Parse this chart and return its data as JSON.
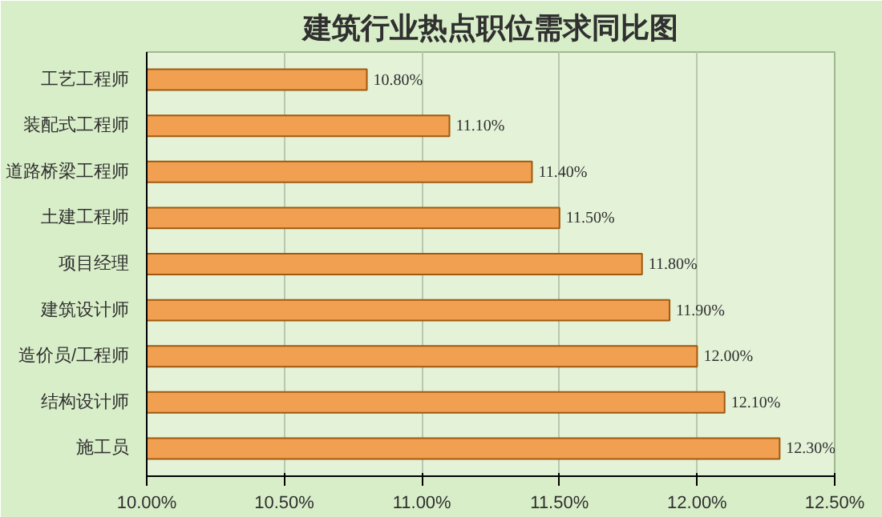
{
  "chart_data": {
    "type": "bar",
    "orientation": "horizontal",
    "title": "建筑行业热点职位需求同比图",
    "categories": [
      "工艺工程师",
      "装配式工程师",
      "道路桥梁工程师",
      "土建工程师",
      "项目经理",
      "建筑设计师",
      "造价员/工程师",
      "结构设计师",
      "施工员"
    ],
    "values": [
      10.8,
      11.1,
      11.4,
      11.5,
      11.8,
      11.9,
      12.0,
      12.1,
      12.3
    ],
    "value_labels": [
      "10.80%",
      "11.10%",
      "11.40%",
      "11.50%",
      "11.80%",
      "11.90%",
      "12.00%",
      "12.10%",
      "12.30%"
    ],
    "color": "#f0a050",
    "xlim": [
      10,
      12.5
    ],
    "xticks": [
      {
        "value": 10,
        "label": "10.00%"
      },
      {
        "value": 10.5,
        "label": "10.50%"
      },
      {
        "value": 11,
        "label": "11.00%"
      },
      {
        "value": 11.5,
        "label": "11.50%"
      },
      {
        "value": 12,
        "label": "12.00%"
      },
      {
        "value": 12.5,
        "label": "12.50%"
      }
    ],
    "grid": "x"
  }
}
